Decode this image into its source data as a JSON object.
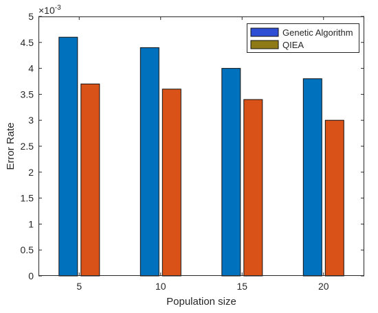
{
  "chart_data": {
    "type": "bar",
    "xlabel": "Population size",
    "ylabel": "Error Rate",
    "y_exponent_label": "×10",
    "y_exponent_power": "-3",
    "categories": [
      "5",
      "10",
      "15",
      "20"
    ],
    "ylim": [
      0,
      5
    ],
    "y_ticks": [
      "0",
      "0.5",
      "1",
      "1.5",
      "2",
      "2.5",
      "3",
      "3.5",
      "4",
      "4.5",
      "5"
    ],
    "series": [
      {
        "name": "Genetic Algorithm",
        "values": [
          4.6,
          4.4,
          4.0,
          3.8
        ],
        "color": "#0072BD",
        "legend_color": "#2E4FD4"
      },
      {
        "name": "QIEA",
        "values": [
          3.7,
          3.6,
          3.4,
          3.0
        ],
        "color": "#D95319",
        "legend_color": "#8E7A16"
      }
    ],
    "grid": false,
    "legend_position": "top-right",
    "box": true
  }
}
